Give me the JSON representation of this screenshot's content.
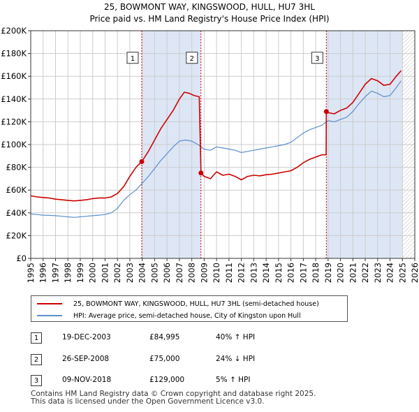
{
  "chart_data": {
    "type": "line",
    "title": "25, BOWMONT WAY, KINGSWOOD, HULL, HU7 3HL",
    "subtitle": "Price paid vs. HM Land Registry's House Price Index (HPI)",
    "xlim": [
      1995,
      2026
    ],
    "ylim": [
      0,
      200000
    ],
    "x_ticks": [
      "1995",
      "1996",
      "1997",
      "1998",
      "1999",
      "2000",
      "2001",
      "2002",
      "2003",
      "2004",
      "2005",
      "2006",
      "2007",
      "2008",
      "2009",
      "2010",
      "2011",
      "2012",
      "2013",
      "2014",
      "2015",
      "2016",
      "2017",
      "2018",
      "2019",
      "2020",
      "2021",
      "2022",
      "2023",
      "2024",
      "2025",
      "2026"
    ],
    "y_ticks": [
      {
        "value": 0,
        "label": "£0"
      },
      {
        "value": 20000,
        "label": "£20K"
      },
      {
        "value": 40000,
        "label": "£40K"
      },
      {
        "value": 60000,
        "label": "£60K"
      },
      {
        "value": 80000,
        "label": "£80K"
      },
      {
        "value": 100000,
        "label": "£100K"
      },
      {
        "value": 120000,
        "label": "£120K"
      },
      {
        "value": 140000,
        "label": "£140K"
      },
      {
        "value": 160000,
        "label": "£160K"
      },
      {
        "value": 180000,
        "label": "£180K"
      },
      {
        "value": 200000,
        "label": "£200K"
      }
    ],
    "grid": true,
    "shaded_ranges": [
      [
        2003.96,
        2008.74
      ],
      [
        2018.86,
        2025.0
      ]
    ],
    "hatched_from": 2025.0,
    "series": [
      {
        "name": "25, BOWMONT WAY, KINGSWOOD, HULL, HU7 3HL (semi-detached house)",
        "color": "#cc0000",
        "x": [
          1995.0,
          1995.5,
          1996.0,
          1996.5,
          1997.0,
          1997.5,
          1998.0,
          1998.5,
          1999.0,
          1999.5,
          2000.0,
          2000.5,
          2001.0,
          2001.5,
          2002.0,
          2002.5,
          2003.0,
          2003.5,
          2003.96,
          2004.5,
          2005.0,
          2005.5,
          2006.0,
          2006.5,
          2007.0,
          2007.4,
          2007.8,
          2008.2,
          2008.6,
          2008.74,
          2009.0,
          2009.5,
          2010.0,
          2010.5,
          2011.0,
          2011.5,
          2012.0,
          2012.5,
          2013.0,
          2013.5,
          2014.0,
          2014.5,
          2015.0,
          2015.5,
          2016.0,
          2016.5,
          2017.0,
          2017.5,
          2018.0,
          2018.5,
          2018.84,
          2018.86,
          2019.0,
          2019.5,
          2020.0,
          2020.5,
          2021.0,
          2021.5,
          2022.0,
          2022.5,
          2023.0,
          2023.5,
          2024.0,
          2024.5,
          2024.9
        ],
        "y": [
          55000,
          54000,
          53500,
          53000,
          52000,
          51500,
          51000,
          50500,
          51000,
          51500,
          52500,
          53000,
          53000,
          54000,
          57000,
          63000,
          72000,
          80000,
          85000,
          94000,
          104000,
          114000,
          122000,
          130000,
          140000,
          146000,
          145000,
          143000,
          142000,
          75000,
          72000,
          70000,
          76000,
          73000,
          74000,
          72000,
          69000,
          72000,
          73000,
          72500,
          73500,
          74000,
          75000,
          76000,
          77000,
          80000,
          84000,
          87000,
          89000,
          91000,
          91000,
          129000,
          128000,
          127000,
          130000,
          132000,
          137000,
          145000,
          153000,
          158000,
          156000,
          152000,
          153000,
          160000,
          165000
        ]
      },
      {
        "name": "HPI: Average price, semi-detached house, City of Kingston upon Hull",
        "color": "#5b8ecf",
        "x": [
          1995.0,
          1995.5,
          1996.0,
          1996.5,
          1997.0,
          1997.5,
          1998.0,
          1998.5,
          1999.0,
          1999.5,
          2000.0,
          2000.5,
          2001.0,
          2001.5,
          2002.0,
          2002.5,
          2003.0,
          2003.5,
          2004.0,
          2004.5,
          2005.0,
          2005.5,
          2006.0,
          2006.5,
          2007.0,
          2007.5,
          2008.0,
          2008.5,
          2009.0,
          2009.5,
          2010.0,
          2010.5,
          2011.0,
          2011.5,
          2012.0,
          2012.5,
          2013.0,
          2013.5,
          2014.0,
          2014.5,
          2015.0,
          2015.5,
          2016.0,
          2016.5,
          2017.0,
          2017.5,
          2018.0,
          2018.5,
          2019.0,
          2019.5,
          2020.0,
          2020.5,
          2021.0,
          2021.5,
          2022.0,
          2022.5,
          2023.0,
          2023.5,
          2024.0,
          2024.5,
          2024.9
        ],
        "y": [
          39000,
          38500,
          38000,
          37800,
          37500,
          37000,
          36500,
          36000,
          36500,
          37000,
          37500,
          38000,
          38500,
          40000,
          44000,
          51000,
          56000,
          60000,
          66000,
          72000,
          79000,
          86000,
          92000,
          98000,
          103000,
          104000,
          103000,
          100000,
          96000,
          95000,
          98000,
          97000,
          96000,
          95000,
          93000,
          94000,
          95000,
          96000,
          97000,
          98000,
          99000,
          100000,
          102000,
          106000,
          110000,
          113000,
          115000,
          117000,
          121000,
          120000,
          122000,
          124000,
          129000,
          136000,
          142000,
          147000,
          145000,
          142000,
          143000,
          150000,
          156000
        ]
      }
    ],
    "sales": [
      {
        "label": "1",
        "x": 2003.96,
        "y": 84995
      },
      {
        "label": "2",
        "x": 2008.74,
        "y": 75000
      },
      {
        "label": "3",
        "x": 2018.86,
        "y": 129000
      }
    ],
    "marker_label_y": 175000
  },
  "legend": {
    "red_label": "25, BOWMONT WAY, KINGSWOOD, HULL, HU7 3HL (semi-detached house)",
    "blue_label": "HPI: Average price, semi-detached house, City of Kingston upon Hull"
  },
  "transactions": [
    {
      "num": "1",
      "date": "19-DEC-2003",
      "price": "£84,995",
      "hpi": "40% ↑ HPI"
    },
    {
      "num": "2",
      "date": "26-SEP-2008",
      "price": "£75,000",
      "hpi": "24% ↓ HPI"
    },
    {
      "num": "3",
      "date": "09-NOV-2018",
      "price": "£129,000",
      "hpi": "5% ↑ HPI"
    }
  ],
  "footer": {
    "line1": "Contains HM Land Registry data © Crown copyright and database right 2025.",
    "line2": "This data is licensed under the Open Government Licence v3.0."
  },
  "colors": {
    "red": "#cc0000",
    "blue": "#5b8ecf",
    "shade": "#dde6f5",
    "grid": "#cccccc"
  }
}
